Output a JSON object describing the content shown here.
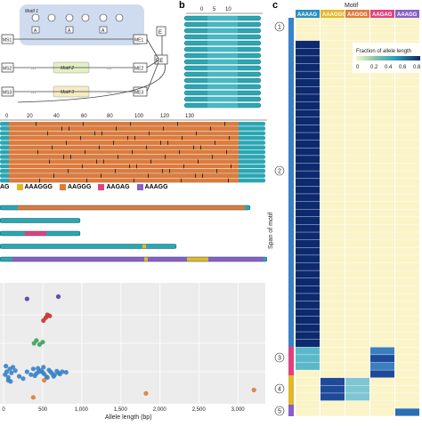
{
  "panels": {
    "b_letter": "b",
    "c_letter": "c"
  },
  "diagram": {
    "motif_boxes": [
      "Motif 1",
      "Motif 2",
      "Motif 3"
    ],
    "left_nodes": [
      "MS1",
      "MS2",
      "MS3"
    ],
    "right_nodes": [
      "ME1",
      "ME2",
      "ME3"
    ],
    "aux_nodes": [
      "E",
      "RE"
    ],
    "bases": [
      "A",
      "A",
      "A"
    ],
    "ellipsis": "..."
  },
  "read_axis": {
    "ticks": [
      "0",
      "20",
      "40",
      "60",
      "80",
      "100",
      "120",
      "130"
    ]
  },
  "panel_b_axis": {
    "ticks": [
      "0",
      "5",
      "10"
    ]
  },
  "motifs_legend": [
    {
      "label": "AAAG",
      "color": "#8b8b8b"
    },
    {
      "label": "AAAGGG",
      "color": "#e2b82a"
    },
    {
      "label": "AAGGG",
      "color": "#e07a3a"
    },
    {
      "label": "AAGAG",
      "color": "#e0427e"
    },
    {
      "label": "AAAGG",
      "color": "#8a5ec8"
    }
  ],
  "colors": {
    "teal": "#2ba6b3",
    "orange": "#e07a3a",
    "navy": "#0d2a6e",
    "cream": "#faf4c8",
    "scatter_blue": "#3a82c9",
    "scatter_red": "#c9332c",
    "scatter_green": "#3aa35a",
    "scatter_purple": "#5b3aa8",
    "scatter_orange": "#e07a3a"
  },
  "heatmap": {
    "title": "Motif",
    "columns": [
      "AAAAG",
      "AAAGGG",
      "AAGGG",
      "AAGAG",
      "AAAGG"
    ],
    "column_colors": [
      "#2a8fbf",
      "#e2b82a",
      "#e07a3a",
      "#e0427e",
      "#8a5ec8"
    ],
    "ylabel": "Span of motif",
    "groups": [
      "1",
      "2",
      "3",
      "4",
      "5"
    ],
    "legend_title": "Fraction of allele length",
    "legend_ticks": [
      "0",
      "0.2",
      "0.4",
      "0.6",
      "0.8"
    ]
  },
  "chart_data": {
    "type": "scatter",
    "xlabel": "Allele length (bp)",
    "xticks": [
      "0",
      "500",
      "1,000",
      "1,500",
      "2,000",
      "2,500",
      "3,000"
    ],
    "xlim": [
      0,
      3300
    ],
    "series": [
      {
        "color": "#3a82c9",
        "x": [
          20,
          40,
          60,
          80,
          100,
          150,
          200,
          250,
          300,
          350,
          380,
          400,
          420,
          450,
          480,
          500,
          520,
          550,
          580,
          600,
          620,
          650,
          680,
          700,
          720,
          750,
          800,
          60,
          120,
          30,
          90,
          440,
          510,
          560,
          640
        ],
        "y": [
          0.45,
          0.5,
          0.4,
          0.55,
          0.48,
          0.52,
          0.42,
          0.38,
          0.5,
          0.45,
          0.55,
          0.43,
          0.47,
          0.5,
          0.52,
          0.49,
          0.46,
          0.41,
          0.53,
          0.5,
          0.47,
          0.44,
          0.51,
          0.48,
          0.46,
          0.5,
          0.49,
          0.35,
          0.58,
          0.6,
          0.33,
          0.56,
          0.58,
          0.4,
          0.42
        ]
      },
      {
        "color": "#c9332c",
        "x": [
          510,
          540,
          560,
          590
        ],
        "y": [
          1.4,
          1.45,
          1.5,
          1.48
        ]
      },
      {
        "color": "#3aa35a",
        "x": [
          390,
          420,
          460,
          500
        ],
        "y": [
          1.0,
          1.05,
          0.98,
          1.02
        ]
      },
      {
        "color": "#5b3aa8",
        "x": [
          300,
          700
        ],
        "y": [
          1.78,
          1.82
        ]
      },
      {
        "color": "#e07a3a",
        "x": [
          380,
          1820,
          3200,
          520
        ],
        "y": [
          0.05,
          0.12,
          0.18,
          0.35
        ]
      }
    ]
  }
}
